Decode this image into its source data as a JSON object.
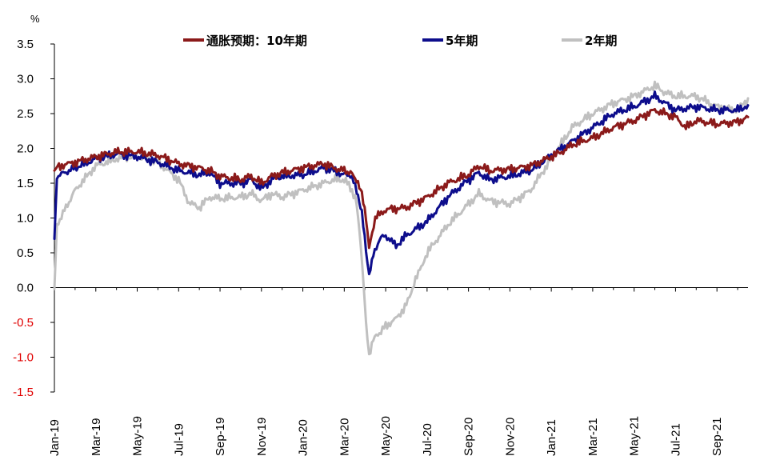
{
  "chart_data": {
    "type": "line",
    "title": "",
    "ylabel": "%",
    "xlabel": "",
    "ylim": [
      -1.5,
      3.5
    ],
    "yticks": [
      3.5,
      3.0,
      2.5,
      2.0,
      1.5,
      1.0,
      0.5,
      0.0,
      -0.5,
      -1.0,
      -1.5
    ],
    "ytick_labels": [
      "3.5",
      "3.0",
      "2.5",
      "2.0",
      "1.5",
      "1.0",
      "0.5",
      "0.0",
      "-0.5",
      "-1.0",
      "-1.5"
    ],
    "negative_tick_color": "#e00000",
    "x_tick_labels": [
      "Jan-19",
      "Mar-19",
      "May-19",
      "Jul-19",
      "Sep-19",
      "Nov-19",
      "Jan-20",
      "Mar-20",
      "May-20",
      "Jul-20",
      "Sep-20",
      "Nov-20",
      "Jan-21",
      "Mar-21",
      "May-21",
      "Jul-21",
      "Sep-21"
    ],
    "x_months_range": [
      0,
      33.5
    ],
    "grid": false,
    "legend_position": "top",
    "series": [
      {
        "name": "通胀预期：10年期",
        "color": "#8b1a1a",
        "points": [
          [
            0.0,
            1.68
          ],
          [
            0.15,
            1.74
          ],
          [
            1,
            1.8
          ],
          [
            2,
            1.88
          ],
          [
            3,
            1.95
          ],
          [
            4,
            1.95
          ],
          [
            5,
            1.9
          ],
          [
            6,
            1.78
          ],
          [
            7,
            1.72
          ],
          [
            7.5,
            1.68
          ],
          [
            8,
            1.6
          ],
          [
            9,
            1.55
          ],
          [
            9.5,
            1.6
          ],
          [
            10,
            1.5
          ],
          [
            10.5,
            1.6
          ],
          [
            11,
            1.65
          ],
          [
            12,
            1.72
          ],
          [
            13,
            1.78
          ],
          [
            13.5,
            1.72
          ],
          [
            14,
            1.68
          ],
          [
            14.3,
            1.65
          ],
          [
            14.6,
            1.55
          ],
          [
            14.85,
            1.4
          ],
          [
            15.05,
            1.0
          ],
          [
            15.2,
            0.55
          ],
          [
            15.35,
            0.8
          ],
          [
            15.5,
            1.0
          ],
          [
            16,
            1.12
          ],
          [
            17,
            1.15
          ],
          [
            18,
            1.3
          ],
          [
            19,
            1.5
          ],
          [
            20,
            1.62
          ],
          [
            20.5,
            1.75
          ],
          [
            21,
            1.68
          ],
          [
            22,
            1.7
          ],
          [
            23,
            1.75
          ],
          [
            24,
            1.88
          ],
          [
            24.5,
            1.95
          ],
          [
            25,
            2.05
          ],
          [
            26,
            2.15
          ],
          [
            27,
            2.3
          ],
          [
            28,
            2.4
          ],
          [
            29,
            2.55
          ],
          [
            30,
            2.45
          ],
          [
            30.5,
            2.3
          ],
          [
            31,
            2.4
          ],
          [
            32,
            2.35
          ],
          [
            33,
            2.38
          ],
          [
            33.5,
            2.45
          ]
        ]
      },
      {
        "name": "5年期",
        "color": "#0d0d8c",
        "points": [
          [
            0.0,
            0.7
          ],
          [
            0.12,
            1.6
          ],
          [
            1,
            1.72
          ],
          [
            2,
            1.85
          ],
          [
            3,
            1.92
          ],
          [
            4,
            1.88
          ],
          [
            5,
            1.8
          ],
          [
            6,
            1.68
          ],
          [
            7,
            1.62
          ],
          [
            7.5,
            1.65
          ],
          [
            8,
            1.5
          ],
          [
            9,
            1.5
          ],
          [
            9.5,
            1.55
          ],
          [
            10,
            1.42
          ],
          [
            10.5,
            1.55
          ],
          [
            11,
            1.6
          ],
          [
            12,
            1.62
          ],
          [
            13,
            1.72
          ],
          [
            13.5,
            1.68
          ],
          [
            14,
            1.62
          ],
          [
            14.3,
            1.62
          ],
          [
            14.6,
            1.4
          ],
          [
            14.85,
            1.1
          ],
          [
            15.05,
            0.55
          ],
          [
            15.2,
            0.18
          ],
          [
            15.4,
            0.45
          ],
          [
            15.7,
            0.7
          ],
          [
            16,
            0.75
          ],
          [
            16.5,
            0.6
          ],
          [
            17,
            0.75
          ],
          [
            18,
            0.95
          ],
          [
            19,
            1.3
          ],
          [
            20,
            1.55
          ],
          [
            20.5,
            1.65
          ],
          [
            21,
            1.55
          ],
          [
            22,
            1.6
          ],
          [
            23,
            1.68
          ],
          [
            24,
            1.9
          ],
          [
            25,
            2.1
          ],
          [
            26,
            2.3
          ],
          [
            27,
            2.5
          ],
          [
            28,
            2.6
          ],
          [
            29,
            2.75
          ],
          [
            29.5,
            2.65
          ],
          [
            30,
            2.55
          ],
          [
            31,
            2.6
          ],
          [
            32,
            2.55
          ],
          [
            33,
            2.55
          ],
          [
            33.5,
            2.62
          ]
        ]
      },
      {
        "name": "2年期",
        "color": "#c0c0c0",
        "points": [
          [
            0.0,
            -0.02
          ],
          [
            0.12,
            0.9
          ],
          [
            1,
            1.4
          ],
          [
            2,
            1.75
          ],
          [
            3,
            1.85
          ],
          [
            4,
            1.88
          ],
          [
            5,
            1.8
          ],
          [
            6,
            1.55
          ],
          [
            6.5,
            1.22
          ],
          [
            7,
            1.15
          ],
          [
            7.5,
            1.3
          ],
          [
            8,
            1.28
          ],
          [
            9,
            1.3
          ],
          [
            9.5,
            1.35
          ],
          [
            10,
            1.25
          ],
          [
            10.5,
            1.35
          ],
          [
            11,
            1.3
          ],
          [
            12,
            1.4
          ],
          [
            13,
            1.5
          ],
          [
            13.5,
            1.55
          ],
          [
            14,
            1.55
          ],
          [
            14.3,
            1.45
          ],
          [
            14.6,
            1.2
          ],
          [
            14.8,
            0.6
          ],
          [
            14.95,
            0.0
          ],
          [
            15.05,
            -0.5
          ],
          [
            15.2,
            -0.95
          ],
          [
            15.4,
            -0.75
          ],
          [
            16,
            -0.55
          ],
          [
            16.5,
            -0.45
          ],
          [
            17,
            -0.25
          ],
          [
            17.3,
            0.0
          ],
          [
            18,
            0.5
          ],
          [
            19,
            0.9
          ],
          [
            20,
            1.2
          ],
          [
            20.5,
            1.35
          ],
          [
            21,
            1.25
          ],
          [
            22,
            1.2
          ],
          [
            23,
            1.4
          ],
          [
            24,
            1.85
          ],
          [
            25,
            2.3
          ],
          [
            26,
            2.5
          ],
          [
            27,
            2.65
          ],
          [
            28,
            2.75
          ],
          [
            29,
            2.9
          ],
          [
            29.5,
            2.8
          ],
          [
            30,
            2.75
          ],
          [
            31,
            2.75
          ],
          [
            32,
            2.6
          ],
          [
            33,
            2.55
          ],
          [
            33.5,
            2.72
          ]
        ]
      }
    ]
  }
}
